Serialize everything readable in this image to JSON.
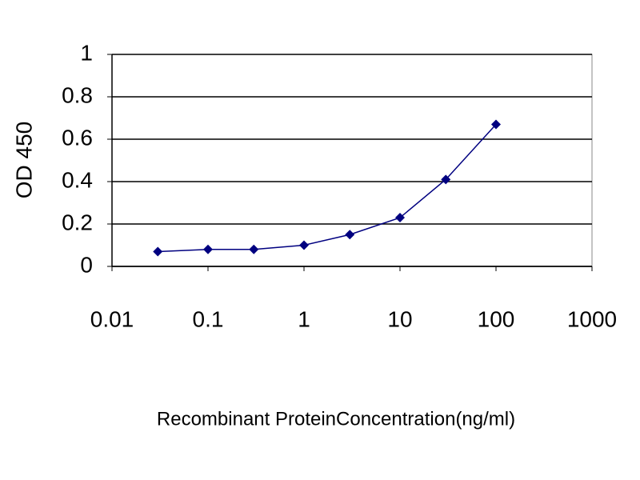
{
  "chart_data": {
    "type": "line",
    "xscale": "log",
    "x_label": "Recombinant ProteinConcentration(ng/ml)",
    "y_label": "OD 450",
    "x": [
      0.03,
      0.1,
      0.3,
      1,
      3,
      10,
      30,
      100
    ],
    "series": [
      {
        "color": "#000080",
        "values": [
          0.07,
          0.08,
          0.08,
          0.1,
          0.15,
          0.23,
          0.41,
          0.67
        ]
      }
    ],
    "xlim": [
      0.01,
      1000
    ],
    "xticks": [
      0.01,
      0.1,
      1,
      10,
      100,
      1000
    ],
    "ylim": [
      0,
      1
    ],
    "yticks": [
      0,
      0.2,
      0.4,
      0.6,
      0.8,
      1
    ],
    "grid": true
  }
}
